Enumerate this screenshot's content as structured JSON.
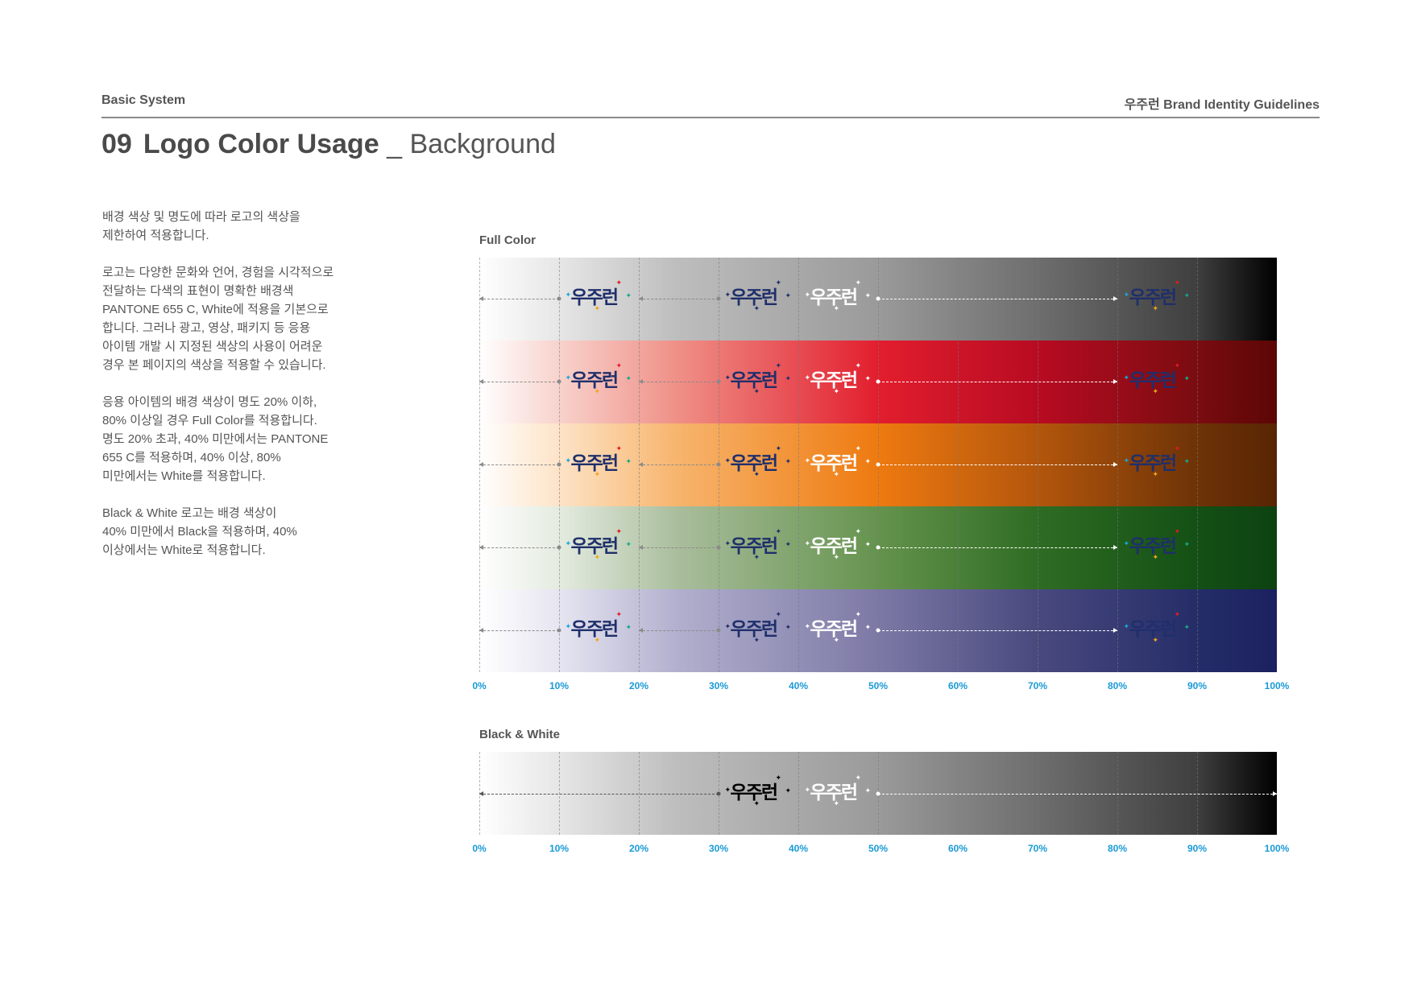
{
  "header": {
    "section": "Basic System",
    "brand": "우주런 Brand Identity Guidelines"
  },
  "title": {
    "number": "09",
    "main": "Logo Color Usage",
    "separator": "_",
    "sub": "Background"
  },
  "description": [
    "배경 색상 및 명도에 따라 로고의 색상을\n제한하여 적용합니다.",
    "로고는 다양한 문화와 언어, 경험을 시각적으로\n전달하는 다색의 표현이 명확한 배경색\nPANTONE 655 C, White에 적용을 기본으로\n합니다. 그러나 광고, 영상, 패키지 등 응용\n아이템 개발 시 지정된 색상의 사용이 어려운\n경우 본 페이지의 색상을 적용할 수 있습니다.",
    "응용 아이템의 배경 색상이 명도 20% 이하,\n80% 이상일 경우 Full Color를 적용합니다.\n명도 20% 초과, 40% 미만에서는 PANTONE\n655 C를 적용하며, 40% 이상, 80%\n미만에서는 White를 적용합니다.",
    "Black & White 로고는 배경 색상이\n40% 미만에서 Black을 적용하며, 40%\n이상에서는 White로 적용합니다."
  ],
  "full_color": {
    "label": "Full Color",
    "bands": [
      {
        "name": "gray",
        "stops": [
          "#ffffff",
          "#e6e6e6",
          "#bdbdbd",
          "#9a9a9a",
          "#6e6e6e",
          "#3f3f3f",
          "#000000"
        ]
      },
      {
        "name": "red",
        "stops": [
          "#ffffff",
          "#f8d2cc",
          "#ef8f86",
          "#e21e2e",
          "#b80b22",
          "#7a0c10",
          "#5c0606"
        ]
      },
      {
        "name": "orange",
        "stops": [
          "#ffffff",
          "#fde3c7",
          "#f7b46c",
          "#ee7a10",
          "#b3560c",
          "#6e3307",
          "#582503"
        ]
      },
      {
        "name": "green",
        "stops": [
          "#ffffff",
          "#e4ebe0",
          "#a9bd9c",
          "#65934e",
          "#2f6c23",
          "#145015",
          "#0d4211"
        ]
      },
      {
        "name": "navy",
        "stops": [
          "#ffffff",
          "#e6e5f1",
          "#b1afcd",
          "#7c79a5",
          "#49497e",
          "#252d68",
          "#1a215f"
        ]
      }
    ]
  },
  "black_white": {
    "label": "Black & White",
    "stops": [
      "#ffffff",
      "#e6e6e6",
      "#bdbdbd",
      "#9a9a9a",
      "#6e6e6e",
      "#3f3f3f",
      "#000000"
    ]
  },
  "percent_labels": [
    "0%",
    "10%",
    "20%",
    "30%",
    "40%",
    "50%",
    "60%",
    "70%",
    "80%",
    "90%",
    "100%"
  ],
  "logo": {
    "wordmark": "우주런",
    "versions": {
      "full": {
        "text": "#1f2f6b",
        "stars": [
          "#e01b24",
          "#18a8d8",
          "#18a889",
          "#f2a516"
        ]
      },
      "pantone": {
        "text": "#1f2f6b",
        "stars": [
          "#1f2f6b",
          "#1f2f6b",
          "#1f2f6b",
          "#1f2f6b"
        ]
      },
      "white": {
        "text": "#ffffff",
        "stars": [
          "#ffffff",
          "#ffffff",
          "#ffffff",
          "#ffffff"
        ]
      },
      "black": {
        "text": "#000000",
        "stars": [
          "#000000",
          "#000000",
          "#000000",
          "#000000"
        ]
      }
    }
  },
  "colors": {
    "accent_blue": "#1a9ad6",
    "text_dark": "#4a4a4a",
    "rule": "#8a8a8a"
  }
}
